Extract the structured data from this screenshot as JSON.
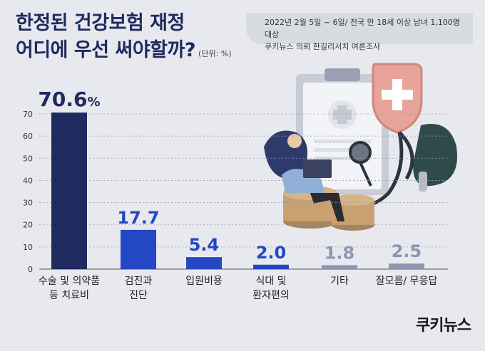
{
  "title": {
    "line1": "한정된 건강보험 재정",
    "line2": "어디에 우선 써야할까?",
    "unit": "(단위: %)"
  },
  "source": {
    "line1": "2022년 2월 5일 ~ 6일/  전국 만 18세 이상 남녀 1,100명 대상",
    "line2": "쿠키뉴스 의뢰 한길리서치 여론조사"
  },
  "brand": {
    "name": "쿠키뉴스"
  },
  "icons": [
    "clipboard-icon",
    "shield-cross-icon",
    "stethoscope-icon",
    "coin-stack-icon",
    "person-with-laptop-icon"
  ],
  "colors": {
    "primary_bar": "#1f2a5e",
    "secondary_bar": "#2447c4",
    "minor_bar": "#8e96b0"
  },
  "chart_data": {
    "type": "bar",
    "categories": [
      [
        "수술 및 의약품",
        "등 치료비"
      ],
      [
        "검진과",
        "진단"
      ],
      [
        "입원비용"
      ],
      [
        "식대 및",
        "환자편의"
      ],
      [
        "기타"
      ],
      [
        "잘모름/ 무응답"
      ]
    ],
    "values": [
      70.6,
      17.7,
      5.4,
      2.0,
      1.8,
      2.5
    ],
    "value_labels": [
      "70.6%",
      "17.7",
      "5.4",
      "2.0",
      "1.8",
      "2.5"
    ],
    "ylim": [
      0,
      70
    ],
    "yticks": [
      0,
      10,
      20,
      30,
      40,
      50,
      60,
      70
    ],
    "grid": true
  }
}
